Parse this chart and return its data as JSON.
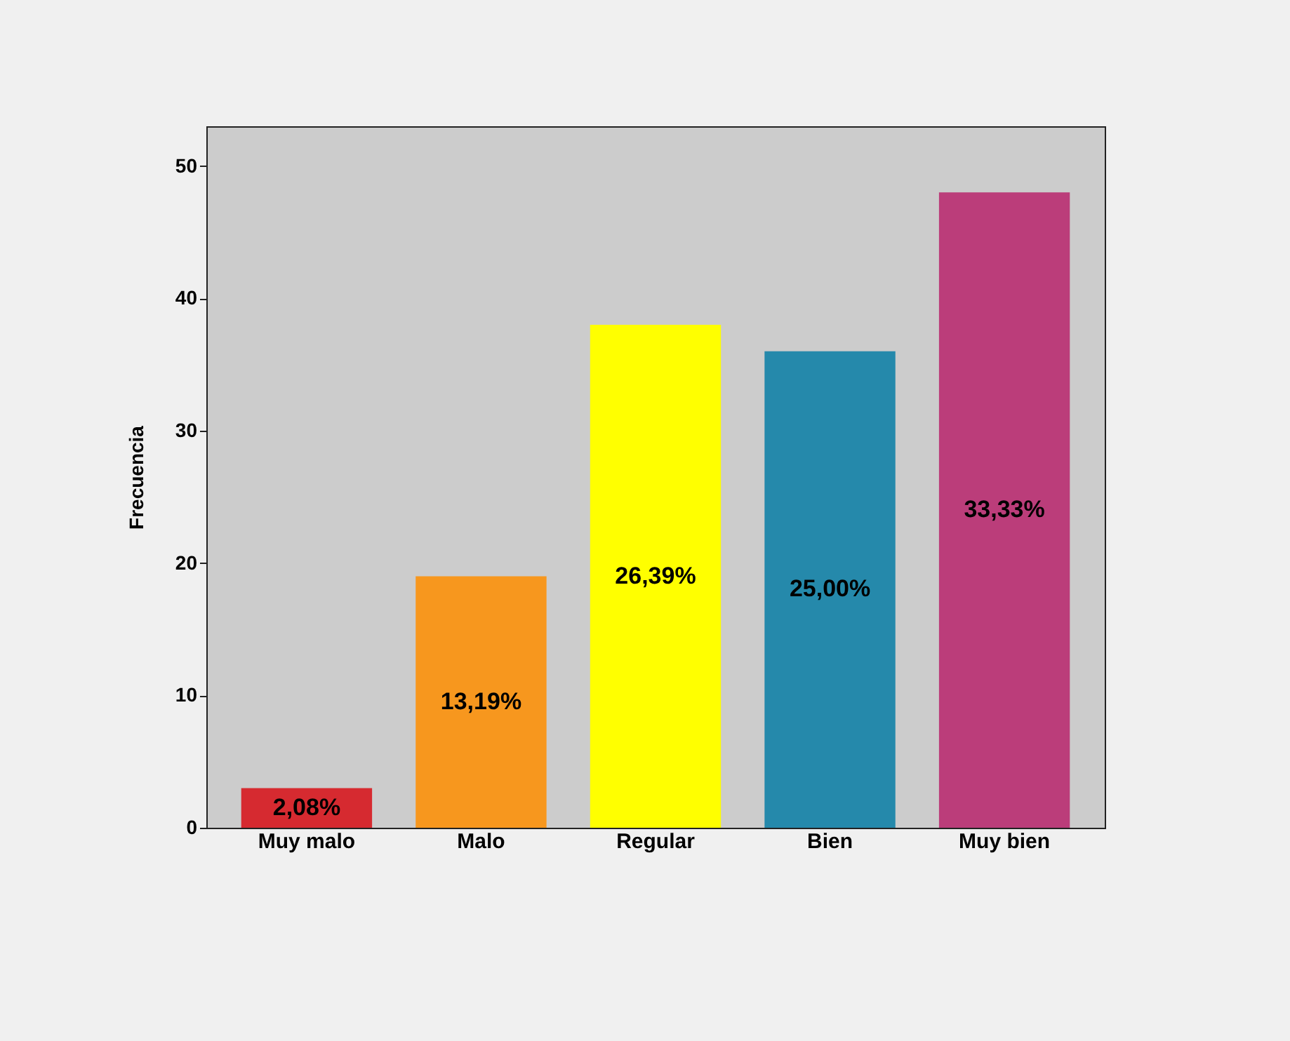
{
  "chart_data": {
    "type": "bar",
    "ylabel": "Frecuencia",
    "categories": [
      "Muy malo",
      "Malo",
      "Regular",
      "Bien",
      "Muy bien"
    ],
    "values": [
      3,
      19,
      38,
      36,
      48
    ],
    "colors": [
      "#d62a30",
      "#f7971e",
      "#ffff00",
      "#2589ab",
      "#bb3d7a"
    ],
    "annotations": [
      "2,08%",
      "13,19%",
      "26,39%",
      "25,00%",
      "33,33%"
    ],
    "ylim": [
      0,
      53
    ],
    "yticks": [
      0,
      10,
      20,
      30,
      40,
      50
    ],
    "grid": false,
    "legend": false
  }
}
